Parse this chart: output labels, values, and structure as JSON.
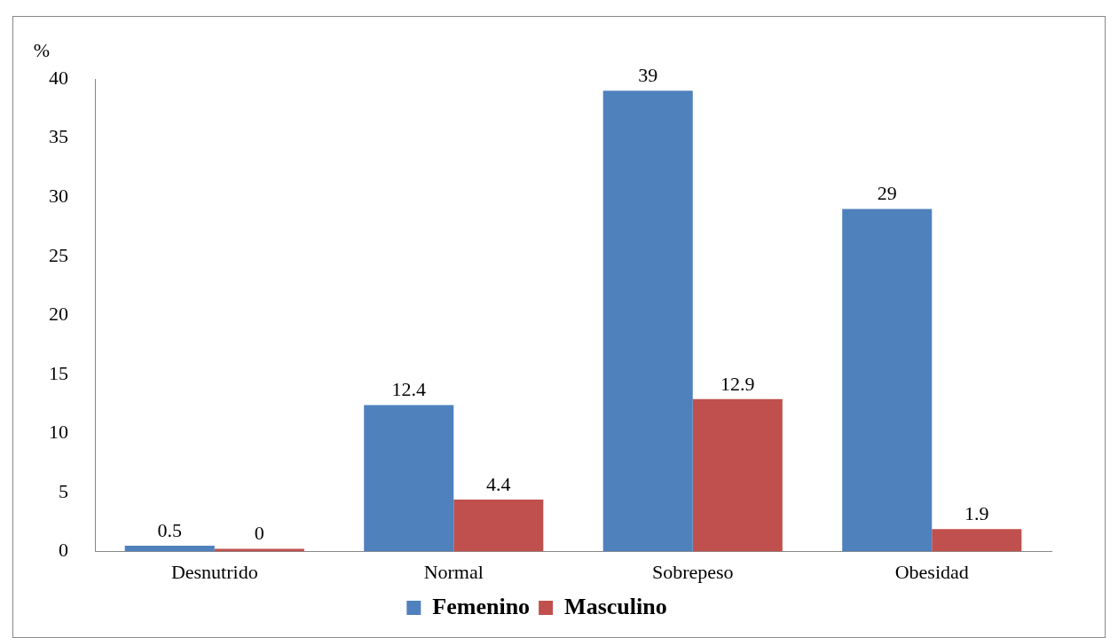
{
  "chart_data": {
    "type": "bar",
    "ylabel": "%",
    "categories": [
      "Desnutrido",
      "Normal",
      "Sobrepeso",
      "Obesidad"
    ],
    "series": [
      {
        "name": "Femenino",
        "color": "#4f81bd",
        "values": [
          0.5,
          12.4,
          39,
          29
        ]
      },
      {
        "name": "Masculino",
        "color": "#c0504d",
        "values": [
          0,
          4.4,
          12.9,
          1.9
        ]
      }
    ],
    "ylim": [
      0,
      40
    ],
    "yticks": [
      0,
      5,
      10,
      15,
      20,
      25,
      30,
      35,
      40
    ],
    "grid": false,
    "legend": "bottom",
    "data_labels": true
  }
}
